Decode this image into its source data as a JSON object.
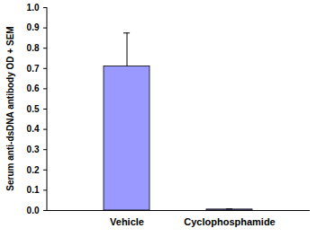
{
  "chart_data": {
    "type": "bar",
    "categories": [
      "Vehicle",
      "Cyclophosphamide"
    ],
    "values": [
      0.71,
      0.005
    ],
    "errors": [
      0.165,
      0.003
    ],
    "color": "#9999ff",
    "y_label": "Serum anti-dsDNA antibody OD + SEM",
    "ylim": [
      0,
      1
    ],
    "yticks": [
      {
        "value": 0,
        "label": "0.0"
      },
      0.1,
      0.2,
      0.3,
      0.4,
      0.5,
      0.6,
      0.7,
      0.8,
      0.9,
      {
        "value": 1,
        "label": "1.0"
      }
    ],
    "grid": false
  }
}
